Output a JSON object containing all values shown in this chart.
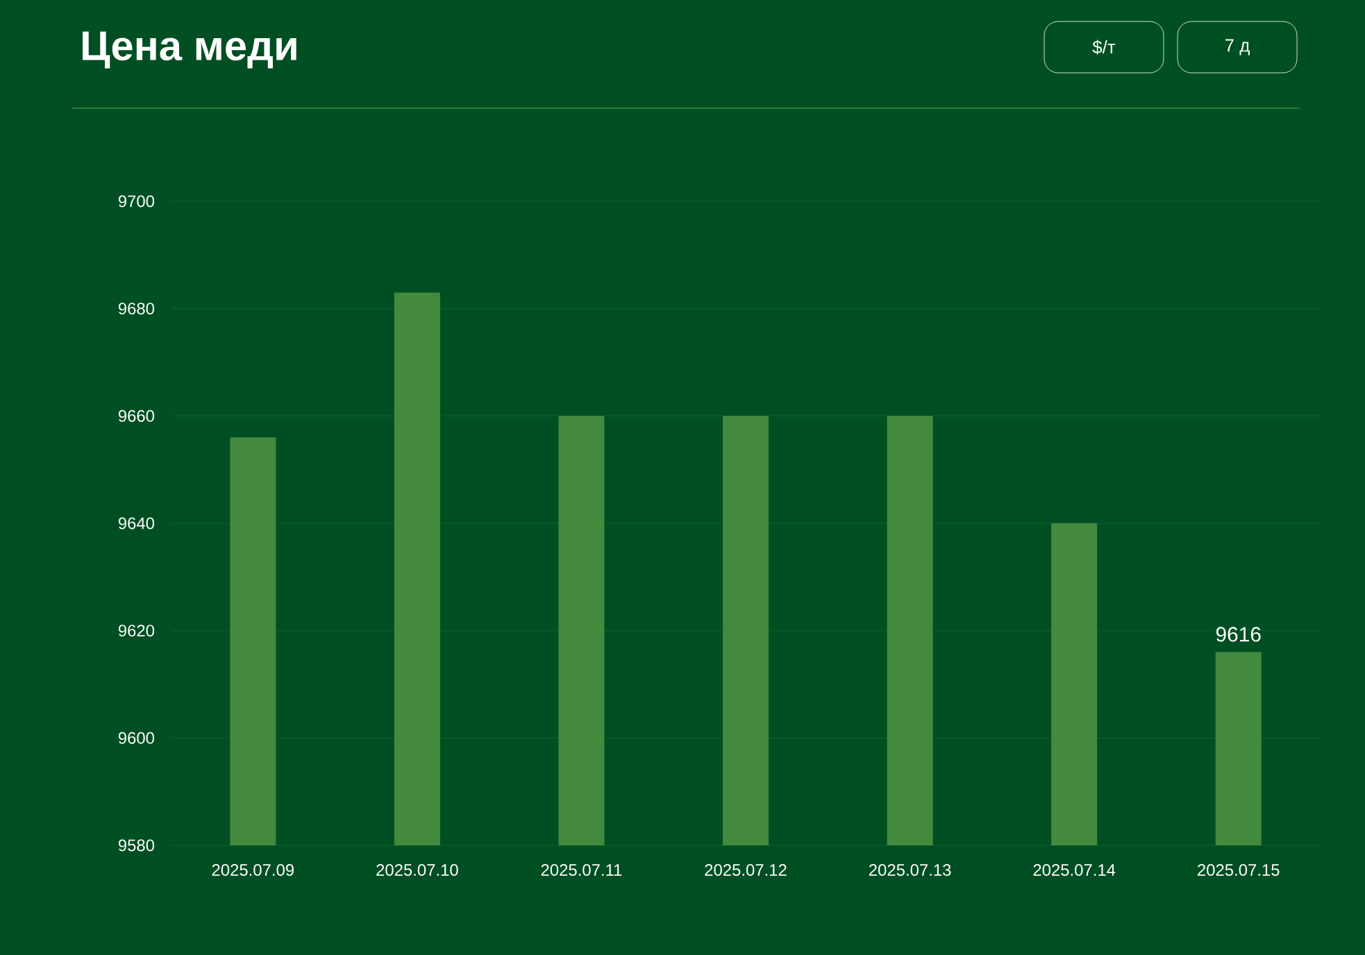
{
  "chart_data": {
    "type": "bar",
    "title": "Цена меди",
    "annotations": [
      "$/т",
      "7 д"
    ],
    "categories": [
      "2025.07.09",
      "2025.07.10",
      "2025.07.11",
      "2025.07.12",
      "2025.07.13",
      "2025.07.14",
      "2025.07.15"
    ],
    "values": [
      9656,
      9683,
      9660,
      9660,
      9660,
      9640,
      9616
    ],
    "value_labels": [
      null,
      null,
      null,
      null,
      null,
      null,
      "9616"
    ],
    "color": "#438a3f",
    "ylim": [
      9580,
      9700
    ],
    "yticks": [
      9580,
      9600,
      9620,
      9640,
      9660,
      9680,
      9700
    ],
    "grid": "y"
  }
}
